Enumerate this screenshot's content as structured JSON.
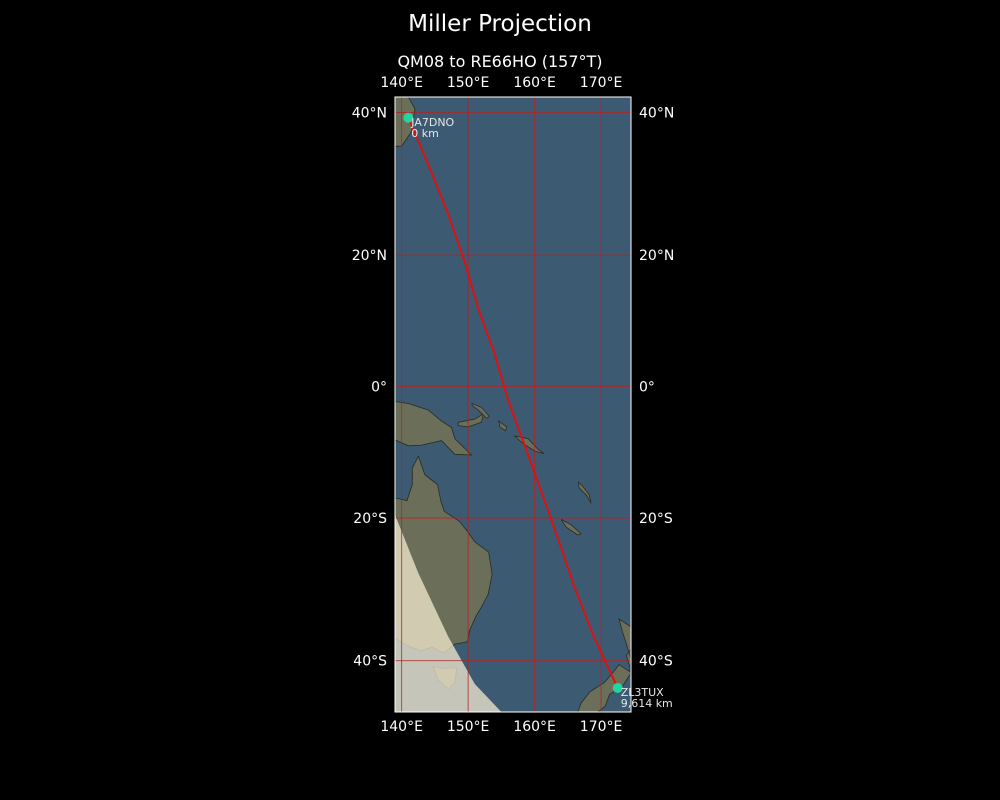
{
  "title": "Miller Projection",
  "subtitle": "QM08 to RE66HO (157°T)",
  "colors": {
    "background": "#000000",
    "ocean": "#3d5a73",
    "land": "#6b6f5a",
    "grid": "#b22222",
    "path": "#dd1111",
    "station": "#22d4a0",
    "daylight": "#f3ead0"
  },
  "map": {
    "projection": "Miller",
    "lon_range": [
      139,
      174.5
    ],
    "lat_range": [
      -46.5,
      42
    ],
    "lon_ticks": [
      {
        "value": 140,
        "label": "140°E"
      },
      {
        "value": 150,
        "label": "150°E"
      },
      {
        "value": 160,
        "label": "160°E"
      },
      {
        "value": 170,
        "label": "170°E"
      }
    ],
    "lat_ticks": [
      {
        "value": 40,
        "label": "40°N"
      },
      {
        "value": 20,
        "label": "20°N"
      },
      {
        "value": 0,
        "label": "0°"
      },
      {
        "value": -20,
        "label": "20°S"
      },
      {
        "value": -40,
        "label": "40°S"
      }
    ]
  },
  "stations": [
    {
      "call": "JA7DNO",
      "distance": "0 km",
      "lon": 141,
      "lat": 39.3
    },
    {
      "call": "ZL3TUX",
      "distance": "9,614 km",
      "lon": 172.5,
      "lat": -43.5
    }
  ],
  "path": [
    [
      141,
      39.3
    ],
    [
      144,
      33
    ],
    [
      147,
      26
    ],
    [
      149.5,
      19
    ],
    [
      151.5,
      12
    ],
    [
      154,
      5
    ],
    [
      156,
      -2
    ],
    [
      158.5,
      -9
    ],
    [
      161,
      -16
    ],
    [
      163.5,
      -23
    ],
    [
      166,
      -30
    ],
    [
      169,
      -37
    ],
    [
      172.5,
      -43.5
    ]
  ],
  "landmasses": [
    {
      "name": "japan",
      "points": [
        [
          139,
          42
        ],
        [
          141,
          42
        ],
        [
          142,
          40.5
        ],
        [
          141.5,
          37.5
        ],
        [
          140,
          35.5
        ],
        [
          139,
          35.5
        ]
      ]
    },
    {
      "name": "new-guinea",
      "points": [
        [
          139,
          -2.3
        ],
        [
          141,
          -2.6
        ],
        [
          144,
          -3.6
        ],
        [
          146,
          -5.3
        ],
        [
          147.5,
          -6.3
        ],
        [
          148,
          -8
        ],
        [
          150.5,
          -10.5
        ],
        [
          148,
          -10.4
        ],
        [
          146,
          -8.3
        ],
        [
          143,
          -9
        ],
        [
          141,
          -9.1
        ],
        [
          139,
          -8.2
        ]
      ]
    },
    {
      "name": "new-britain",
      "points": [
        [
          148.5,
          -5.5
        ],
        [
          151,
          -5
        ],
        [
          152.3,
          -4.2
        ],
        [
          152,
          -5.5
        ],
        [
          150,
          -6.2
        ],
        [
          148.5,
          -6
        ]
      ]
    },
    {
      "name": "new-ireland",
      "points": [
        [
          150.6,
          -2.6
        ],
        [
          152,
          -3.2
        ],
        [
          153.2,
          -4.6
        ],
        [
          152.8,
          -4.9
        ],
        [
          151.6,
          -3.7
        ],
        [
          150.6,
          -2.9
        ]
      ]
    },
    {
      "name": "bougainville",
      "points": [
        [
          154.6,
          -5.3
        ],
        [
          155.8,
          -6.2
        ],
        [
          155.6,
          -6.8
        ],
        [
          154.8,
          -6.2
        ]
      ]
    },
    {
      "name": "solomon-islands",
      "points": [
        [
          157,
          -7.6
        ],
        [
          159,
          -8
        ],
        [
          160.5,
          -9.6
        ],
        [
          161.4,
          -10.3
        ],
        [
          160,
          -9.9
        ],
        [
          158.2,
          -8.7
        ]
      ]
    },
    {
      "name": "vanuatu",
      "points": [
        [
          166.6,
          -14.6
        ],
        [
          167.3,
          -15.3
        ],
        [
          168.2,
          -16.5
        ],
        [
          168.5,
          -17.8
        ],
        [
          167.8,
          -16.6
        ],
        [
          166.7,
          -15.5
        ]
      ]
    },
    {
      "name": "new-caledonia",
      "points": [
        [
          164,
          -20.2
        ],
        [
          165.5,
          -21
        ],
        [
          167,
          -22.3
        ],
        [
          166.5,
          -22.5
        ],
        [
          164.8,
          -21.4
        ]
      ]
    },
    {
      "name": "australia",
      "points": [
        [
          139,
          -17
        ],
        [
          140.8,
          -17.4
        ],
        [
          141.6,
          -15
        ],
        [
          141.6,
          -12.5
        ],
        [
          142.5,
          -10.7
        ],
        [
          143.5,
          -13.5
        ],
        [
          144.5,
          -14.3
        ],
        [
          145.4,
          -15
        ],
        [
          145.9,
          -17.5
        ],
        [
          146.4,
          -19
        ],
        [
          148.7,
          -20.5
        ],
        [
          150,
          -22.1
        ],
        [
          151,
          -23.5
        ],
        [
          153.1,
          -25
        ],
        [
          153.6,
          -28.2
        ],
        [
          153,
          -31
        ],
        [
          152,
          -32.8
        ],
        [
          151.2,
          -34
        ],
        [
          150.2,
          -36
        ],
        [
          149.9,
          -37.5
        ],
        [
          148,
          -37.8
        ],
        [
          146.3,
          -39
        ],
        [
          144.5,
          -38.2
        ],
        [
          143,
          -38.7
        ],
        [
          141,
          -38.1
        ],
        [
          139,
          -37
        ]
      ]
    },
    {
      "name": "tasmania",
      "points": [
        [
          144.7,
          -40.8
        ],
        [
          146.5,
          -41
        ],
        [
          148.3,
          -40.9
        ],
        [
          148,
          -42.9
        ],
        [
          147,
          -43.6
        ],
        [
          145.5,
          -42.5
        ]
      ]
    },
    {
      "name": "new-zealand-north",
      "points": [
        [
          172.7,
          -34.4
        ],
        [
          174.5,
          -35.5
        ],
        [
          174.5,
          -38.5
        ],
        [
          173.8,
          -39.3
        ],
        [
          174.5,
          -41.3
        ],
        [
          174.3,
          -41.4
        ],
        [
          174.5,
          -39.8
        ],
        [
          173.1,
          -35.8
        ]
      ]
    },
    {
      "name": "new-zealand-south",
      "points": [
        [
          172.7,
          -40.5
        ],
        [
          174.3,
          -41.4
        ],
        [
          174.5,
          -41.6
        ],
        [
          173.2,
          -43.3
        ],
        [
          171.3,
          -44.3
        ],
        [
          170.6,
          -45.8
        ],
        [
          169.5,
          -46.5
        ],
        [
          166.5,
          -46.5
        ],
        [
          167,
          -45.4
        ],
        [
          168.3,
          -44
        ],
        [
          170.5,
          -42.8
        ],
        [
          172,
          -41.3
        ]
      ]
    }
  ],
  "daylight_region": [
    [
      139,
      -19.5
    ],
    [
      142.5,
      -28
    ],
    [
      147,
      -36.8
    ],
    [
      151,
      -43
    ],
    [
      155,
      -46.5
    ],
    [
      139,
      -46.5
    ]
  ]
}
